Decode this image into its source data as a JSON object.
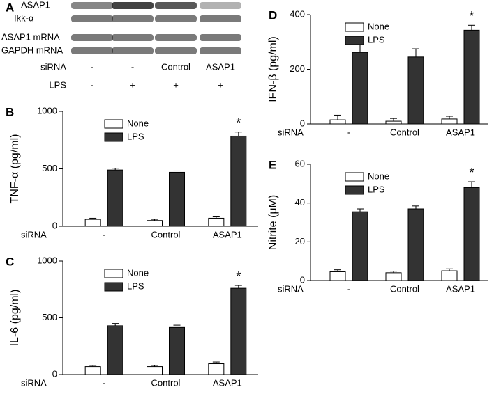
{
  "blot": {
    "panel": "A",
    "bands": [
      "ASAP1",
      "Ikk-α",
      "ASAP1 mRNA",
      "GAPDH mRNA"
    ],
    "rows": [
      {
        "label": "siRNA",
        "cells": [
          "-",
          "-",
          "Control",
          "ASAP1"
        ]
      },
      {
        "label": "LPS",
        "cells": [
          "-",
          "+",
          "+",
          "+"
        ]
      }
    ]
  },
  "chart_data": [
    {
      "type": "bar",
      "panel": "B",
      "ylabel": "TNF-α (pg/ml)",
      "xlabel": "siRNA",
      "annotation": "*",
      "categories": [
        "-",
        "Control",
        "ASAP1"
      ],
      "series": [
        {
          "name": "None",
          "color": "#ffffff",
          "values": [
            60,
            50,
            70
          ],
          "errors": [
            10,
            10,
            12
          ]
        },
        {
          "name": "LPS",
          "color": "#333333",
          "values": [
            490,
            470,
            785
          ],
          "errors": [
            15,
            12,
            35
          ]
        }
      ],
      "ylim": [
        0,
        1000
      ],
      "yticks": [
        0,
        500,
        1000
      ]
    },
    {
      "type": "bar",
      "panel": "C",
      "ylabel": "IL-6 (pg/ml)",
      "xlabel": "siRNA",
      "annotation": "*",
      "categories": [
        "-",
        "Control",
        "ASAP1"
      ],
      "series": [
        {
          "name": "None",
          "color": "#ffffff",
          "values": [
            70,
            70,
            95
          ],
          "errors": [
            10,
            10,
            15
          ]
        },
        {
          "name": "LPS",
          "color": "#333333",
          "values": [
            430,
            415,
            760
          ],
          "errors": [
            20,
            20,
            25
          ]
        }
      ],
      "ylim": [
        0,
        1000
      ],
      "yticks": [
        0,
        500,
        1000
      ]
    },
    {
      "type": "bar",
      "panel": "D",
      "ylabel": "IFN-β (pg/ml)",
      "xlabel": "siRNA",
      "annotation": "*",
      "categories": [
        "-",
        "Control",
        "ASAP1"
      ],
      "series": [
        {
          "name": "None",
          "color": "#ffffff",
          "values": [
            15,
            10,
            18
          ],
          "errors": [
            17,
            10,
            10
          ]
        },
        {
          "name": "LPS",
          "color": "#333333",
          "values": [
            262,
            245,
            343
          ],
          "errors": [
            42,
            30,
            18
          ]
        }
      ],
      "ylim": [
        0,
        400
      ],
      "yticks": [
        0,
        200,
        400
      ]
    },
    {
      "type": "bar",
      "panel": "E",
      "ylabel": "Nitrite (μM)",
      "xlabel": "siRNA",
      "annotation": "*",
      "categories": [
        "-",
        "Control",
        "ASAP1"
      ],
      "series": [
        {
          "name": "None",
          "color": "#ffffff",
          "values": [
            4.5,
            4,
            5
          ],
          "errors": [
            1,
            0.8,
            1
          ]
        },
        {
          "name": "LPS",
          "color": "#333333",
          "values": [
            35.5,
            37,
            48
          ],
          "errors": [
            1.5,
            1.5,
            3
          ]
        }
      ],
      "ylim": [
        0,
        60
      ],
      "yticks": [
        0,
        20,
        40,
        60
      ]
    }
  ]
}
